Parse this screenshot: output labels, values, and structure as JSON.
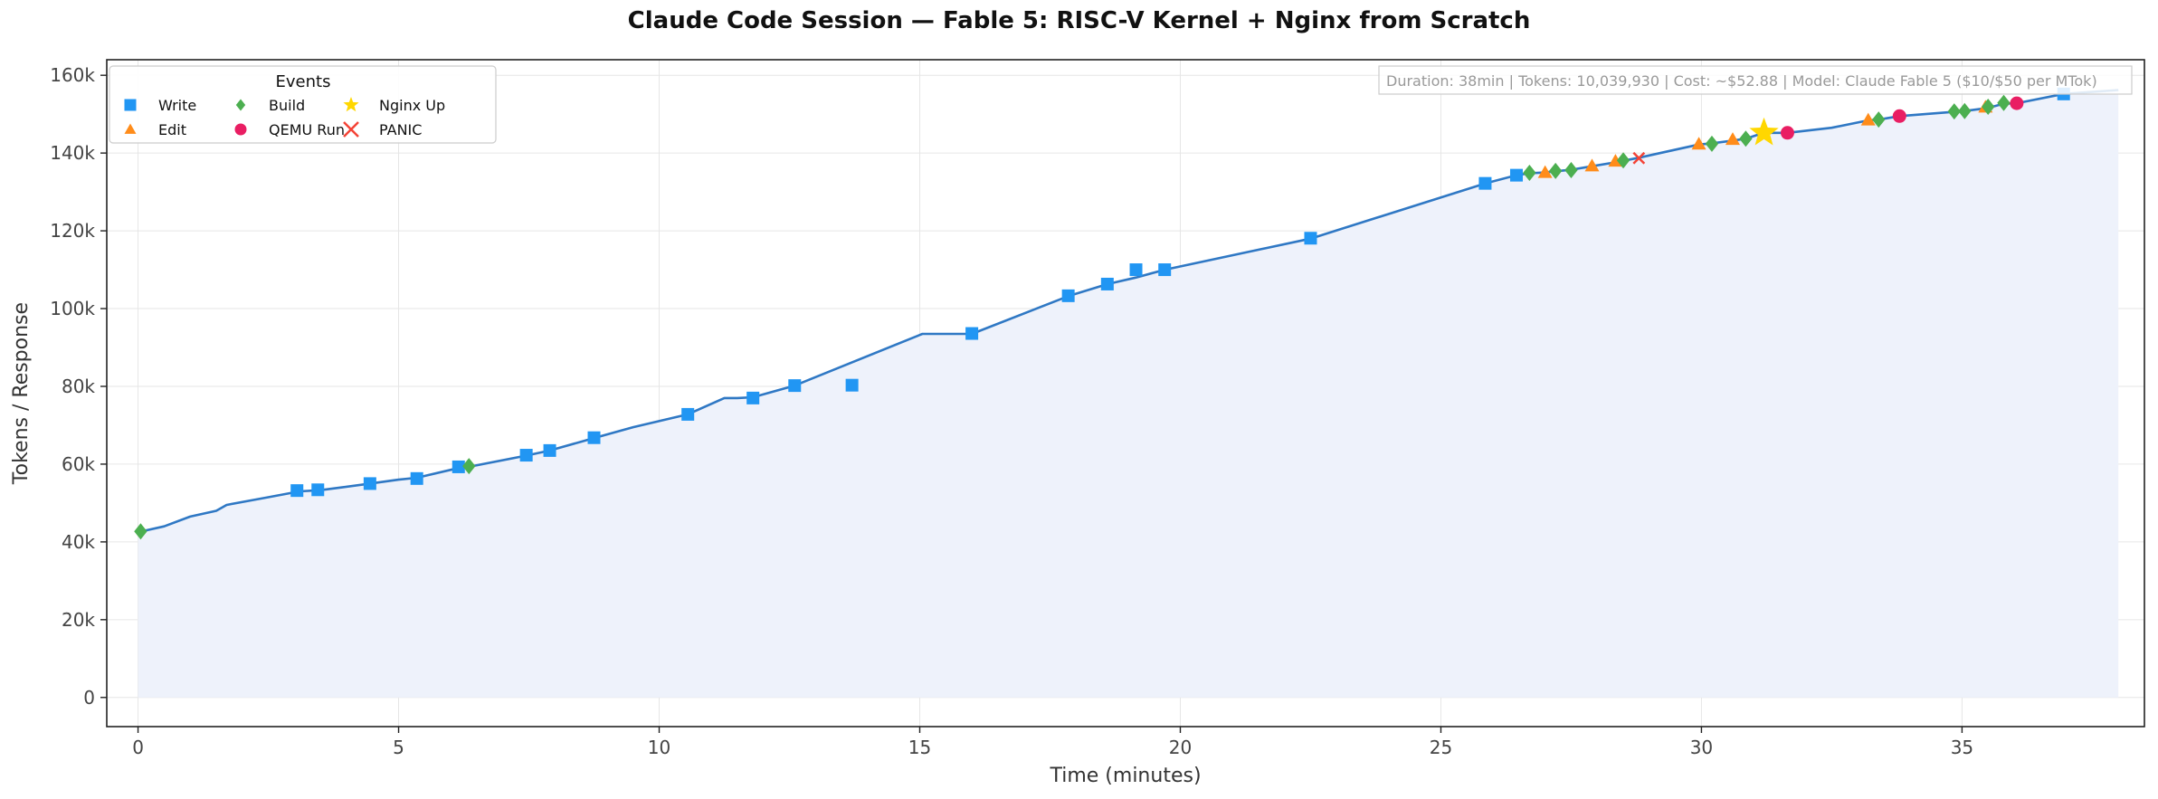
{
  "chart_data": {
    "type": "line",
    "title": "Claude Code Session — Fable 5: RISC-V Kernel + Nginx from Scratch",
    "xlabel": "Time (minutes)",
    "ylabel": "Tokens / Response",
    "xlim": [
      -0.6,
      38.5
    ],
    "ylim": [
      -7500,
      164000
    ],
    "x_ticks": [
      0,
      5,
      10,
      15,
      20,
      25,
      30,
      35
    ],
    "x_tick_labels": [
      "0",
      "5",
      "10",
      "15",
      "20",
      "25",
      "30",
      "35"
    ],
    "y_ticks": [
      0,
      20000,
      40000,
      60000,
      80000,
      100000,
      120000,
      140000,
      160000
    ],
    "y_tick_labels": [
      "0",
      "20k",
      "40k",
      "60k",
      "80k",
      "100k",
      "120k",
      "140k",
      "160k"
    ],
    "grid": true,
    "line_color": "#2f78c4",
    "fill_color": "#eef2fb",
    "series": [
      {
        "x": [
          0,
          0.5,
          1.0,
          1.5,
          1.7,
          2.5,
          3.1,
          3.5,
          3.9,
          4.45,
          5.0,
          5.35,
          6.15,
          6.35,
          7.45,
          7.9,
          8.75,
          9.5,
          10.55,
          11.25,
          11.5,
          11.8,
          12.6,
          15.05,
          16.0,
          17.85,
          18.6,
          19.15,
          19.7,
          22.5,
          25.85,
          26.45,
          26.7,
          27.0,
          27.2,
          27.5,
          27.9,
          28.3,
          28.5,
          28.8,
          29.95,
          30.2,
          30.6,
          30.85,
          31.2,
          31.65,
          32.5,
          33.2,
          33.4,
          33.8,
          34.85,
          35.05,
          35.5,
          35.8,
          36.05,
          36.95,
          38.0
        ],
        "y": [
          42500,
          44000,
          46500,
          48000,
          49500,
          51500,
          53000,
          53300,
          54000,
          55000,
          56000,
          56500,
          59000,
          59300,
          62200,
          63500,
          66700,
          69500,
          72800,
          77000,
          77000,
          77200,
          80200,
          93500,
          93500,
          103200,
          106300,
          108000,
          110000,
          118000,
          132200,
          134300,
          134800,
          135000,
          135300,
          135700,
          136600,
          137500,
          138000,
          138800,
          142200,
          142500,
          143200,
          143700,
          145200,
          145200,
          146500,
          148400,
          148600,
          149500,
          150600,
          150800,
          151600,
          152700,
          152800,
          155200,
          156200
        ]
      }
    ],
    "events": {
      "write": [
        [
          3.05,
          53200
        ],
        [
          3.45,
          53400
        ],
        [
          4.45,
          55000
        ],
        [
          5.35,
          56300
        ],
        [
          6.15,
          59300
        ],
        [
          7.45,
          62300
        ],
        [
          7.9,
          63500
        ],
        [
          8.75,
          66800
        ],
        [
          10.55,
          72800
        ],
        [
          11.8,
          77000
        ],
        [
          12.6,
          80200
        ],
        [
          13.7,
          80300
        ],
        [
          16.0,
          93600
        ],
        [
          17.85,
          103300
        ],
        [
          18.6,
          106300
        ],
        [
          19.15,
          110000
        ],
        [
          19.7,
          110000
        ],
        [
          22.5,
          118100
        ],
        [
          25.85,
          132200
        ],
        [
          26.45,
          134300
        ],
        [
          36.95,
          155200
        ]
      ],
      "edit": [
        [
          27.0,
          135000
        ],
        [
          27.9,
          136700
        ],
        [
          28.35,
          137900
        ],
        [
          29.95,
          142300
        ],
        [
          30.6,
          143500
        ],
        [
          33.2,
          148500
        ],
        [
          35.45,
          151800
        ]
      ],
      "build": [
        [
          0.05,
          42700
        ],
        [
          6.35,
          59500
        ],
        [
          26.7,
          134900
        ],
        [
          27.2,
          135400
        ],
        [
          27.5,
          135600
        ],
        [
          28.5,
          138100
        ],
        [
          30.2,
          142400
        ],
        [
          30.85,
          143700
        ],
        [
          33.4,
          148600
        ],
        [
          34.85,
          150700
        ],
        [
          35.05,
          150800
        ],
        [
          35.5,
          151900
        ],
        [
          35.8,
          152900
        ]
      ],
      "qemu_run": [
        [
          31.65,
          145200
        ],
        [
          33.8,
          149500
        ],
        [
          36.05,
          152800
        ]
      ],
      "nginx_up": [
        [
          31.2,
          145200
        ]
      ],
      "panic": [
        [
          28.8,
          138700
        ]
      ]
    },
    "legend": {
      "title": "Events",
      "placement": "top-left",
      "entries": [
        {
          "key": "write",
          "label": "Write",
          "marker": "square",
          "color": "#2196f3"
        },
        {
          "key": "edit",
          "label": "Edit",
          "marker": "triangle",
          "color": "#ff8c1a"
        },
        {
          "key": "build",
          "label": "Build",
          "marker": "diamond",
          "color": "#4caf50"
        },
        {
          "key": "qemu_run",
          "label": "QEMU Run",
          "marker": "circle",
          "color": "#e91e63"
        },
        {
          "key": "nginx_up",
          "label": "Nginx Up",
          "marker": "star",
          "color": "#ffd700"
        },
        {
          "key": "panic",
          "label": "PANIC",
          "marker": "x",
          "color": "#f44336"
        }
      ]
    },
    "info_box": "Duration: 38min | Tokens: 10,039,930 | Cost: ~$52.88 | Model: Claude Fable 5 ($10/$50 per MTok)"
  }
}
